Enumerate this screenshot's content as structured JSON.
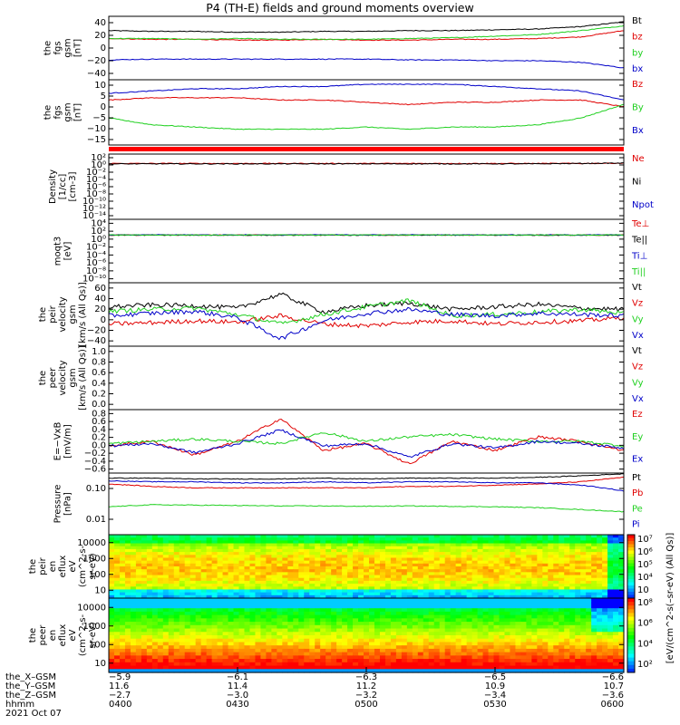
{
  "title": "P4 (TH-E) fields and ground moments overview",
  "colors": {
    "black": "#000000",
    "red": "#e00000",
    "green": "#20d020",
    "blue": "#0000c8"
  },
  "chart_data": [
    {
      "type": "line",
      "ylabel": [
        "the",
        "fgs",
        "gsm",
        "[nT]"
      ],
      "yticks": [
        "40",
        "20",
        "0",
        "−20",
        "−40"
      ],
      "ylim": [
        -40,
        40
      ],
      "series": [
        {
          "name": "Bt",
          "color": "black",
          "values": [
            22,
            21,
            21,
            20,
            20,
            21,
            21,
            22,
            22,
            23,
            24,
            27,
            33
          ]
        },
        {
          "name": "bz",
          "color": "red",
          "values": [
            12,
            11,
            11,
            10,
            10,
            11,
            10,
            10,
            11,
            11,
            12,
            14,
            22
          ]
        },
        {
          "name": "by",
          "color": "green",
          "values": [
            12,
            12,
            11,
            12,
            11,
            11,
            11,
            12,
            13,
            15,
            17,
            22,
            28
          ]
        },
        {
          "name": "bx",
          "color": "blue",
          "values": [
            -15,
            -14,
            -14,
            -14,
            -14,
            -14,
            -14,
            -15,
            -15,
            -16,
            -16,
            -18,
            -25
          ]
        }
      ]
    },
    {
      "type": "line",
      "ylabel": [
        "the",
        "fgs",
        "gsm",
        "[nT]"
      ],
      "yticks": [
        "10",
        "5",
        "0",
        "−5",
        "−10",
        "−15"
      ],
      "ylim": [
        -18,
        11
      ],
      "series": [
        {
          "name": "Bz",
          "color": "red",
          "values": [
            2,
            3,
            3,
            3,
            2,
            2,
            1,
            0,
            1,
            1,
            2,
            2,
            -1
          ]
        },
        {
          "name": "By",
          "color": "green",
          "values": [
            -6,
            -9,
            -10,
            -11,
            -11,
            -11,
            -10,
            -11,
            -10,
            -10,
            -9,
            -6,
            0
          ]
        },
        {
          "name": "Bx",
          "color": "blue",
          "values": [
            5,
            6,
            7,
            7,
            8,
            8,
            9,
            9,
            9,
            8,
            7,
            6,
            2
          ]
        }
      ]
    },
    {
      "type": "line",
      "ylabel": [
        "Density",
        "[1/cc]",
        "[cm-3]"
      ],
      "yticks": [
        "10²",
        "10⁰",
        "10⁻²",
        "10⁻⁴",
        "10⁻⁶",
        "10⁻⁸",
        "10⁻¹⁰",
        "10⁻¹²",
        "10⁻¹⁴"
      ],
      "log": true,
      "ylim": [
        -14,
        2
      ],
      "series": [
        {
          "name": "Ne",
          "color": "red",
          "values": [
            0.5,
            0.5,
            0.5,
            0.5,
            0.5,
            0.5,
            0.5,
            0.5,
            0.5,
            0.5,
            0.5,
            0.5,
            0.6
          ]
        },
        {
          "name": "Ni",
          "color": "black",
          "values": [
            0.4,
            0.4,
            0.4,
            0.4,
            0.4,
            0.4,
            0.4,
            0.4,
            0.4,
            0.4,
            0.4,
            0.5,
            0.6
          ]
        },
        {
          "name": "Npot",
          "color": "blue",
          "values": []
        }
      ]
    },
    {
      "type": "line",
      "ylabel": [
        "moqt3",
        "[eV]"
      ],
      "yticks": [
        "10⁴",
        "10²",
        "10⁰",
        "10⁻²",
        "10⁻⁴",
        "10⁻⁶",
        "10⁻⁸",
        "10⁻¹⁰"
      ],
      "log": true,
      "ylim": [
        -10,
        4
      ],
      "series": [
        {
          "name": "Te⊥",
          "color": "red",
          "values": [
            3.3,
            3.3,
            3.3,
            3.3,
            3.3,
            3.3,
            3.3,
            3.3,
            3.3,
            3.3,
            3.3,
            3.3,
            3.3
          ]
        },
        {
          "name": "Te||",
          "color": "black",
          "values": [
            3.2,
            3.2,
            3.2,
            3.2,
            3.2,
            3.2,
            3.2,
            3.2,
            3.2,
            3.2,
            3.2,
            3.2,
            3.2
          ]
        },
        {
          "name": "Ti⊥",
          "color": "blue",
          "values": [
            3.6,
            3.6,
            3.6,
            3.6,
            3.6,
            3.6,
            3.6,
            3.6,
            3.6,
            3.6,
            3.6,
            3.6,
            3.6
          ]
        },
        {
          "name": "Ti||",
          "color": "green",
          "values": [
            3.5,
            3.5,
            3.5,
            3.5,
            3.5,
            3.5,
            3.5,
            3.5,
            3.5,
            3.5,
            3.5,
            3.5,
            3.5
          ]
        }
      ]
    },
    {
      "type": "line",
      "ylabel": [
        "the",
        "peir",
        "velocity",
        "gsm",
        "[km/s (All Qs)]"
      ],
      "yticks": [
        "60",
        "40",
        "20",
        "0",
        "−20",
        "−40"
      ],
      "ylim": [
        -40,
        60
      ],
      "series": [
        {
          "name": "Vt",
          "color": "black",
          "values": [
            22,
            25,
            24,
            20,
            42,
            14,
            24,
            28,
            18,
            22,
            26,
            20,
            18
          ]
        },
        {
          "name": "Vz",
          "color": "red",
          "values": [
            -5,
            -3,
            0,
            -2,
            8,
            -5,
            -8,
            -2,
            0,
            -5,
            -2,
            0,
            5
          ]
        },
        {
          "name": "Vy",
          "color": "green",
          "values": [
            15,
            18,
            20,
            10,
            -5,
            10,
            22,
            32,
            8,
            10,
            14,
            18,
            12
          ]
        },
        {
          "name": "Vx",
          "color": "blue",
          "values": [
            8,
            12,
            15,
            5,
            -28,
            0,
            12,
            18,
            10,
            8,
            12,
            10,
            8
          ]
        }
      ]
    },
    {
      "type": "line",
      "ylabel": [
        "the",
        "peer",
        "velocity",
        "gsm",
        "[km/s (All Qs)]"
      ],
      "yticks": [
        "1.0",
        "0.8",
        "0.6",
        "0.4",
        "0.2",
        "0.0"
      ],
      "ylim": [
        0,
        1
      ],
      "series": [
        {
          "name": "Vt",
          "color": "black",
          "values": []
        },
        {
          "name": "Vz",
          "color": "red",
          "values": []
        },
        {
          "name": "Vy",
          "color": "green",
          "values": []
        },
        {
          "name": "Vx",
          "color": "blue",
          "values": []
        }
      ]
    },
    {
      "type": "line",
      "ylabel": [
        "E=−VxB",
        "[mV/m]"
      ],
      "yticks": [
        "0.8",
        "0.6",
        "0.4",
        "0.2",
        "0.0",
        "−0.2",
        "−0.4",
        "−0.6"
      ],
      "ylim": [
        -0.6,
        0.8
      ],
      "series": [
        {
          "name": "Ez",
          "color": "red",
          "values": [
            0,
            0.1,
            -0.2,
            0.1,
            0.6,
            -0.1,
            0.05,
            -0.4,
            0.1,
            -0.1,
            0.2,
            0.1,
            -0.1
          ]
        },
        {
          "name": "Ey",
          "color": "green",
          "values": [
            0.05,
            0.1,
            0.15,
            0.1,
            0.05,
            0.3,
            0.1,
            0.2,
            0.25,
            0.15,
            0.1,
            0.1,
            0
          ]
        },
        {
          "name": "Ex",
          "color": "blue",
          "values": [
            0,
            0.05,
            -0.15,
            0.05,
            0.35,
            0,
            0.05,
            -0.25,
            0.05,
            -0.05,
            0.1,
            0.05,
            -0.05
          ]
        }
      ]
    },
    {
      "type": "line",
      "ylabel": [
        "Pressure",
        "[nPa]"
      ],
      "yticks": [
        "0.10",
        "0.01"
      ],
      "log": true,
      "ylim": [
        -2.1,
        -0.55
      ],
      "series": [
        {
          "name": "Pt",
          "color": "black",
          "values": [
            0.21,
            0.21,
            0.2,
            0.2,
            0.2,
            0.21,
            0.2,
            0.21,
            0.21,
            0.21,
            0.22,
            0.24,
            0.27
          ]
        },
        {
          "name": "Pb",
          "color": "red",
          "values": [
            0.15,
            0.13,
            0.12,
            0.12,
            0.12,
            0.12,
            0.12,
            0.13,
            0.13,
            0.14,
            0.15,
            0.17,
            0.22
          ]
        },
        {
          "name": "Pe",
          "color": "green",
          "values": [
            0.04,
            0.045,
            0.044,
            0.043,
            0.042,
            0.042,
            0.041,
            0.042,
            0.041,
            0.04,
            0.038,
            0.034,
            0.03
          ]
        },
        {
          "name": "Pi",
          "color": "blue",
          "values": [
            0.18,
            0.17,
            0.17,
            0.16,
            0.16,
            0.17,
            0.16,
            0.17,
            0.17,
            0.16,
            0.16,
            0.14,
            0.1
          ]
        }
      ]
    },
    {
      "type": "heatmap",
      "ylabel": [
        "the",
        "peir",
        "en",
        "eflux",
        "eV",
        "(cm^2-s-",
        "sr-eV)"
      ],
      "yticks": [
        "10000",
        "1000",
        "100",
        "10"
      ],
      "colorbar": [
        "10⁷",
        "10⁶",
        "10⁵",
        "10⁴",
        "10⁳"
      ]
    },
    {
      "type": "heatmap",
      "ylabel": [
        "the",
        "peer",
        "en",
        "eflux",
        "eV",
        "(cm^2-s-",
        "sr-eV)"
      ],
      "yticks": [
        "10000",
        "1000",
        "100",
        "10"
      ],
      "colorbar": [
        "10⁸",
        "10⁶",
        "10⁴",
        "10²"
      ]
    }
  ],
  "colorbar_label": "[eV/(cm^2-s(–sr-eV) (All Qs)]",
  "xticks_row": {
    "labels": [
      "the_X–GSM",
      "the_Y–GSM",
      "the_Z–GSM",
      "hhmm",
      "2021 Oct 07"
    ],
    "x": [
      "−5.9",
      "−6.1",
      "−6.3",
      "−6.5",
      "−6.6"
    ],
    "y": [
      "11.6",
      "11.4",
      "11.2",
      "10.9",
      "10.7"
    ],
    "z": [
      "−2.7",
      "−3.0",
      "−3.2",
      "−3.4",
      "−3.6"
    ],
    "hhmm": [
      "0400",
      "0430",
      "0500",
      "0530",
      "0600"
    ]
  }
}
